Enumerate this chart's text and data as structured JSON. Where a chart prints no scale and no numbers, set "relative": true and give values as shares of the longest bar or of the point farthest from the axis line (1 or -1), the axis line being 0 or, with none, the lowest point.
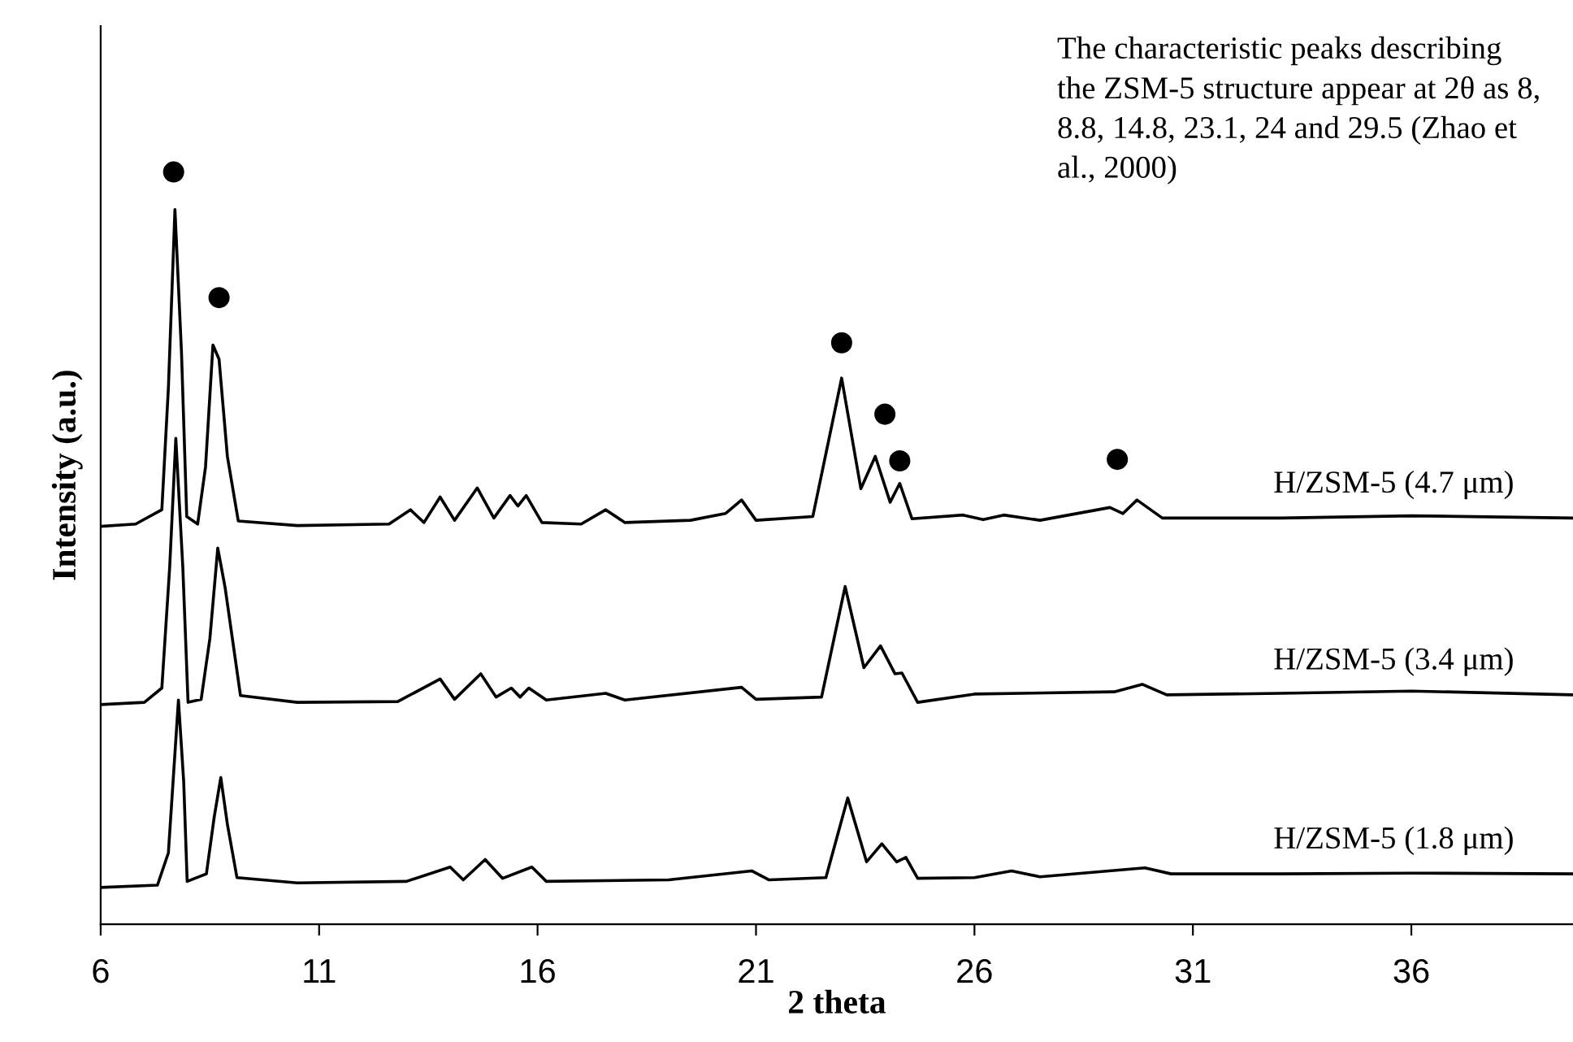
{
  "chart_data": {
    "type": "line",
    "relative": true,
    "xlabel": "2 theta",
    "ylabel": "Intensity (a.u.)",
    "xlim": [
      6,
      39.7
    ],
    "xticks": [
      6,
      11,
      16,
      21,
      26,
      31,
      36
    ],
    "grid": false,
    "legend": false,
    "line_style": "solid",
    "marker": "none",
    "annotations": [
      "The characteristic peaks describing the ZSM-5 structure appear at 2θ as 8, 8.8, 14.8, 23.1, 24 and 29.5 (Zhao et al., 2000)"
    ],
    "series": [
      {
        "name": "H/ZSM-5 (4.7 μm)",
        "color": "#000000",
        "x": [
          6.0,
          6.8,
          7.4,
          7.55,
          7.7,
          7.85,
          7.97,
          8.22,
          8.4,
          8.57,
          8.71,
          8.9,
          9.15,
          10.5,
          12.6,
          13.09,
          13.4,
          13.77,
          14.1,
          14.62,
          15.0,
          15.37,
          15.55,
          15.74,
          16.1,
          17.0,
          17.56,
          18.0,
          19.5,
          20.3,
          20.67,
          21.0,
          22.3,
          22.96,
          23.4,
          23.73,
          24.07,
          24.29,
          24.57,
          25.74,
          26.2,
          26.67,
          27.5,
          29.1,
          29.4,
          29.72,
          30.3,
          33.0,
          36.0,
          39.7
        ],
        "values": [
          0.529,
          0.532,
          0.551,
          0.713,
          0.95,
          0.76,
          0.542,
          0.532,
          0.608,
          0.77,
          0.751,
          0.622,
          0.536,
          0.53,
          0.532,
          0.551,
          0.534,
          0.568,
          0.537,
          0.58,
          0.54,
          0.57,
          0.556,
          0.57,
          0.534,
          0.532,
          0.551,
          0.534,
          0.537,
          0.546,
          0.564,
          0.537,
          0.542,
          0.726,
          0.579,
          0.622,
          0.561,
          0.586,
          0.539,
          0.544,
          0.538,
          0.544,
          0.537,
          0.554,
          0.546,
          0.564,
          0.54,
          0.54,
          0.543,
          0.54
        ]
      },
      {
        "name": "H/ZSM-5 (3.4 μm)",
        "color": "#000000",
        "x": [
          6.0,
          7.0,
          7.4,
          7.58,
          7.72,
          7.88,
          8.0,
          8.3,
          8.5,
          8.68,
          8.85,
          9.2,
          10.5,
          12.8,
          13.77,
          14.1,
          14.7,
          15.05,
          15.4,
          15.6,
          15.8,
          16.2,
          17.56,
          18.0,
          20.67,
          21.0,
          22.5,
          23.04,
          23.47,
          23.85,
          24.18,
          24.34,
          24.7,
          26.0,
          29.2,
          29.84,
          30.4,
          33.0,
          36.0,
          39.7
        ],
        "values": [
          0.292,
          0.295,
          0.314,
          0.475,
          0.646,
          0.475,
          0.295,
          0.299,
          0.38,
          0.5,
          0.447,
          0.304,
          0.295,
          0.296,
          0.326,
          0.299,
          0.333,
          0.302,
          0.314,
          0.302,
          0.314,
          0.298,
          0.307,
          0.298,
          0.315,
          0.299,
          0.302,
          0.449,
          0.341,
          0.37,
          0.333,
          0.334,
          0.295,
          0.306,
          0.309,
          0.319,
          0.305,
          0.307,
          0.31,
          0.305
        ]
      },
      {
        "name": "H/ZSM-5 (1.8 μm)",
        "color": "#000000",
        "x": [
          6.0,
          7.3,
          7.55,
          7.78,
          7.9,
          7.98,
          8.42,
          8.6,
          8.75,
          8.9,
          9.12,
          10.5,
          13.0,
          14.0,
          14.3,
          14.8,
          15.2,
          15.87,
          16.2,
          19.0,
          20.9,
          21.3,
          22.6,
          23.1,
          23.53,
          23.88,
          24.22,
          24.43,
          24.7,
          26.0,
          26.85,
          27.5,
          29.9,
          30.5,
          33.0,
          36.0,
          39.7
        ],
        "values": [
          0.049,
          0.052,
          0.095,
          0.298,
          0.19,
          0.057,
          0.067,
          0.143,
          0.195,
          0.133,
          0.062,
          0.055,
          0.057,
          0.076,
          0.059,
          0.086,
          0.061,
          0.076,
          0.057,
          0.059,
          0.071,
          0.059,
          0.062,
          0.168,
          0.083,
          0.107,
          0.083,
          0.089,
          0.061,
          0.062,
          0.071,
          0.063,
          0.075,
          0.067,
          0.067,
          0.068,
          0.067
        ]
      },
      {
        "type": "scatter",
        "color": "#000000",
        "marker": "circle",
        "x": [
          7.67,
          8.71,
          22.96,
          23.95,
          24.29,
          29.27
        ],
        "values": [
          1.0,
          0.833,
          0.773,
          0.678,
          0.616,
          0.618
        ]
      }
    ]
  }
}
